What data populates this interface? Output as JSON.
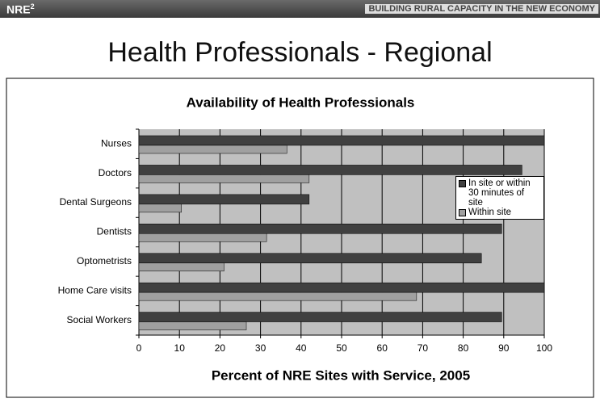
{
  "header": {
    "brand": "NRE",
    "brand_sup": "2",
    "tagline": "BUILDING RURAL CAPACITY IN THE NEW ECONOMY"
  },
  "slide_title": "Health Professionals - Regional",
  "chart_data": {
    "type": "hbar",
    "title": "Availability of Health Professionals",
    "x_label": "Percent of NRE Sites with Service, 2005",
    "categories": [
      "Nurses",
      "Doctors",
      "Dental Surgeons",
      "Dentists",
      "Optometrists",
      "Home Care visits",
      "Social Workers"
    ],
    "series": [
      {
        "name": "In site or within 30 minutes of site",
        "color": "#404040",
        "values": [
          100,
          94.5,
          42,
          89.5,
          84.5,
          100,
          89.5
        ]
      },
      {
        "name": "Within site",
        "color": "#a0a0a0",
        "values": [
          36.5,
          42,
          10.5,
          31.5,
          21,
          68.5,
          26.5
        ]
      }
    ],
    "xlim": [
      0,
      100
    ],
    "xticks": [
      0,
      10,
      20,
      30,
      40,
      50,
      60,
      70,
      80,
      90,
      100
    ],
    "grid": true,
    "legend": "right"
  }
}
